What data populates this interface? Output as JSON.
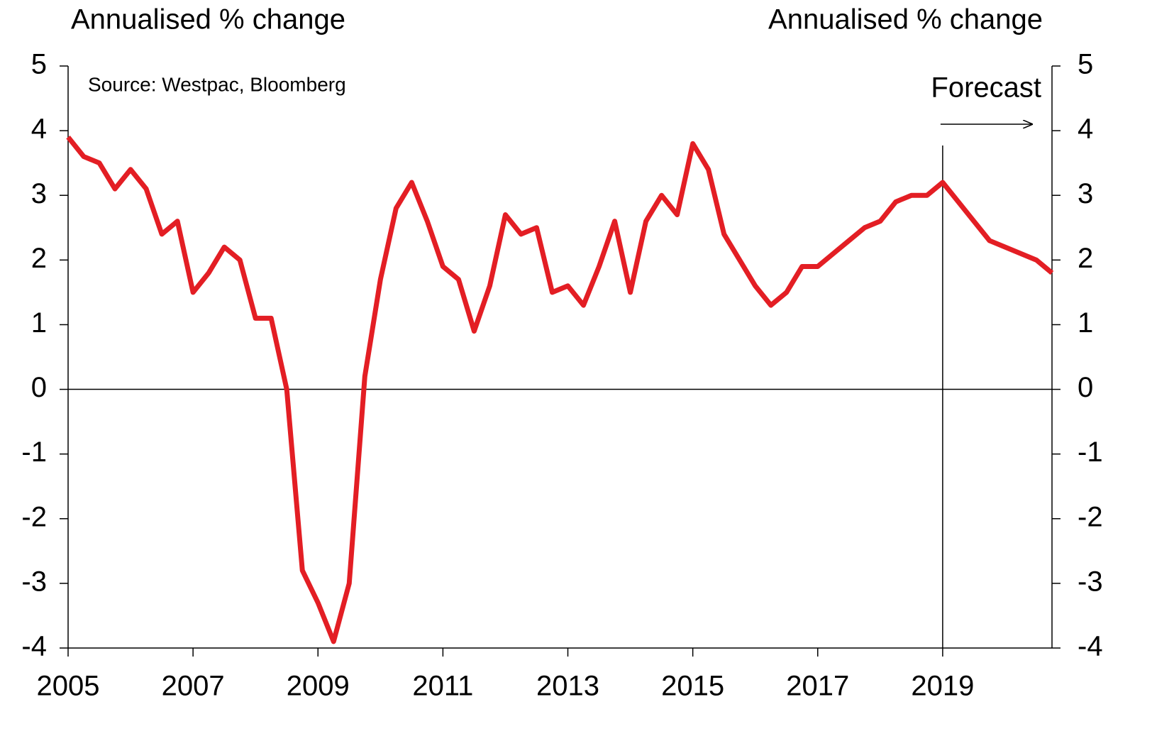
{
  "chart_data": {
    "type": "line",
    "y_label": "Annualised % change",
    "y2_label": "Annualised % change",
    "source": "Source: Westpac, Bloomberg",
    "annotations": [
      {
        "text": "Forecast",
        "x": 2019
      }
    ],
    "x": [
      2005,
      2005.25,
      2005.5,
      2005.75,
      2006,
      2006.25,
      2006.5,
      2006.75,
      2007,
      2007.25,
      2007.5,
      2007.75,
      2008,
      2008.25,
      2008.5,
      2008.75,
      2009,
      2009.25,
      2009.5,
      2009.75,
      2010,
      2010.25,
      2010.5,
      2010.75,
      2011,
      2011.25,
      2011.5,
      2011.75,
      2012,
      2012.25,
      2012.5,
      2012.75,
      2013,
      2013.25,
      2013.5,
      2013.75,
      2014,
      2014.25,
      2014.5,
      2014.75,
      2015,
      2015.25,
      2015.5,
      2015.75,
      2016,
      2016.25,
      2016.5,
      2016.75,
      2017,
      2017.25,
      2017.5,
      2017.75,
      2018,
      2018.25,
      2018.5,
      2018.75,
      2019,
      2019.25,
      2019.5,
      2019.75,
      2020,
      2020.25,
      2020.5,
      2020.75
    ],
    "series": [
      {
        "color": "#e31e24",
        "values": [
          3.9,
          3.6,
          3.5,
          3.1,
          3.4,
          3.1,
          2.4,
          2.6,
          1.5,
          1.8,
          2.2,
          2.0,
          1.1,
          1.1,
          0.0,
          -2.8,
          -3.3,
          -3.9,
          -3.0,
          0.2,
          1.7,
          2.8,
          3.2,
          2.6,
          1.9,
          1.7,
          0.9,
          1.6,
          2.7,
          2.4,
          2.5,
          1.5,
          1.6,
          1.3,
          1.9,
          2.6,
          1.5,
          2.6,
          3.0,
          2.7,
          3.8,
          3.4,
          2.4,
          2.0,
          1.6,
          1.3,
          1.5,
          1.9,
          1.9,
          2.1,
          2.3,
          2.5,
          2.6,
          2.9,
          3.0,
          3.0,
          3.2,
          2.9,
          2.6,
          2.3,
          2.2,
          2.1,
          2.0,
          1.8
        ]
      }
    ],
    "xlim": [
      2005,
      2020.75
    ],
    "xticks": [
      2005,
      2007,
      2009,
      2011,
      2013,
      2015,
      2017,
      2019
    ],
    "ylim": [
      -4,
      5
    ],
    "yticks": [
      -4,
      -3,
      -2,
      -1,
      0,
      1,
      2,
      3,
      4,
      5
    ],
    "y2lim": [
      -4,
      5
    ],
    "y2ticks": [
      -4,
      -3,
      -2,
      -1,
      0,
      1,
      2,
      3,
      4,
      5
    ]
  }
}
